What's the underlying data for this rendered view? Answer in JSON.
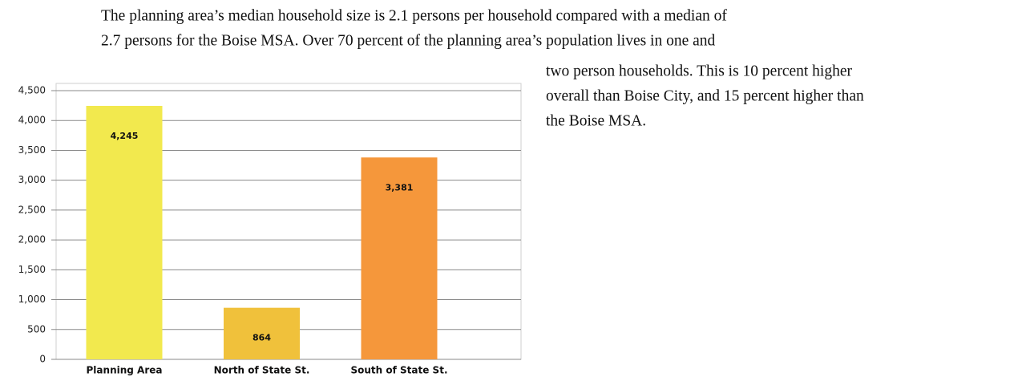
{
  "document": {
    "lines": [
      "The planning area’s median household size is 2.1 persons per household compared with a median of",
      "2.7 persons for the Boise MSA.  Over 70 percent of the planning area’s population lives in one and",
      "two person households. This is 10 percent higher",
      "overall than Boise City, and 15 percent higher than",
      "the Boise MSA."
    ]
  },
  "chart_data": {
    "type": "bar",
    "categories": [
      "Planning Area",
      "North of State St.",
      "South of State St."
    ],
    "values": [
      4245,
      864,
      3381
    ],
    "value_labels": [
      "4,245",
      "864",
      "3,381"
    ],
    "colors": [
      "#f2e94e",
      "#f0c13b",
      "#f5973b"
    ],
    "ylim": [
      0,
      4500
    ],
    "yticks": [
      0,
      500,
      {
        "value": 1000,
        "label": "1,000"
      },
      {
        "value": 1500,
        "label": "1,500"
      },
      {
        "value": 2000,
        "label": "2,000"
      },
      {
        "value": 2500,
        "label": "2,500"
      },
      {
        "value": 3000,
        "label": "3,000"
      },
      {
        "value": 3500,
        "label": "3,500"
      },
      {
        "value": 4000,
        "label": "4,000"
      },
      {
        "value": 4500,
        "label": "4,500"
      }
    ],
    "grid": true
  }
}
